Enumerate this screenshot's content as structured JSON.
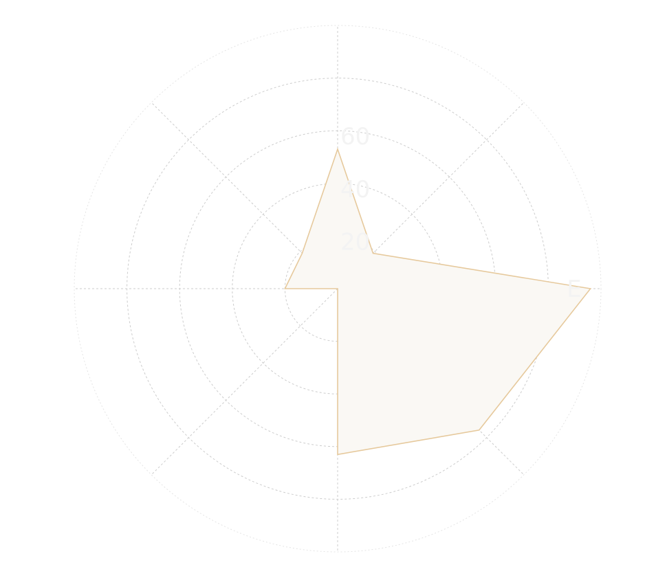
{
  "chart_data": {
    "type": "radar",
    "categories": [
      "E",
      "",
      "",
      "",
      "",
      "",
      "",
      ""
    ],
    "series": [
      {
        "values": [
          96,
          19,
          53,
          19,
          20,
          0,
          63,
          76
        ]
      }
    ],
    "rlim": [
      0,
      100
    ],
    "radial_ticks": [
      20,
      40,
      60,
      80,
      100
    ],
    "radial_tick_labels": [
      "20",
      "40",
      "60"
    ],
    "grid": true,
    "colors": {
      "stroke": "#e6c99c",
      "fill": "#faf8f4",
      "grid": "#cccccc",
      "labels": "#f3f3f3"
    }
  }
}
